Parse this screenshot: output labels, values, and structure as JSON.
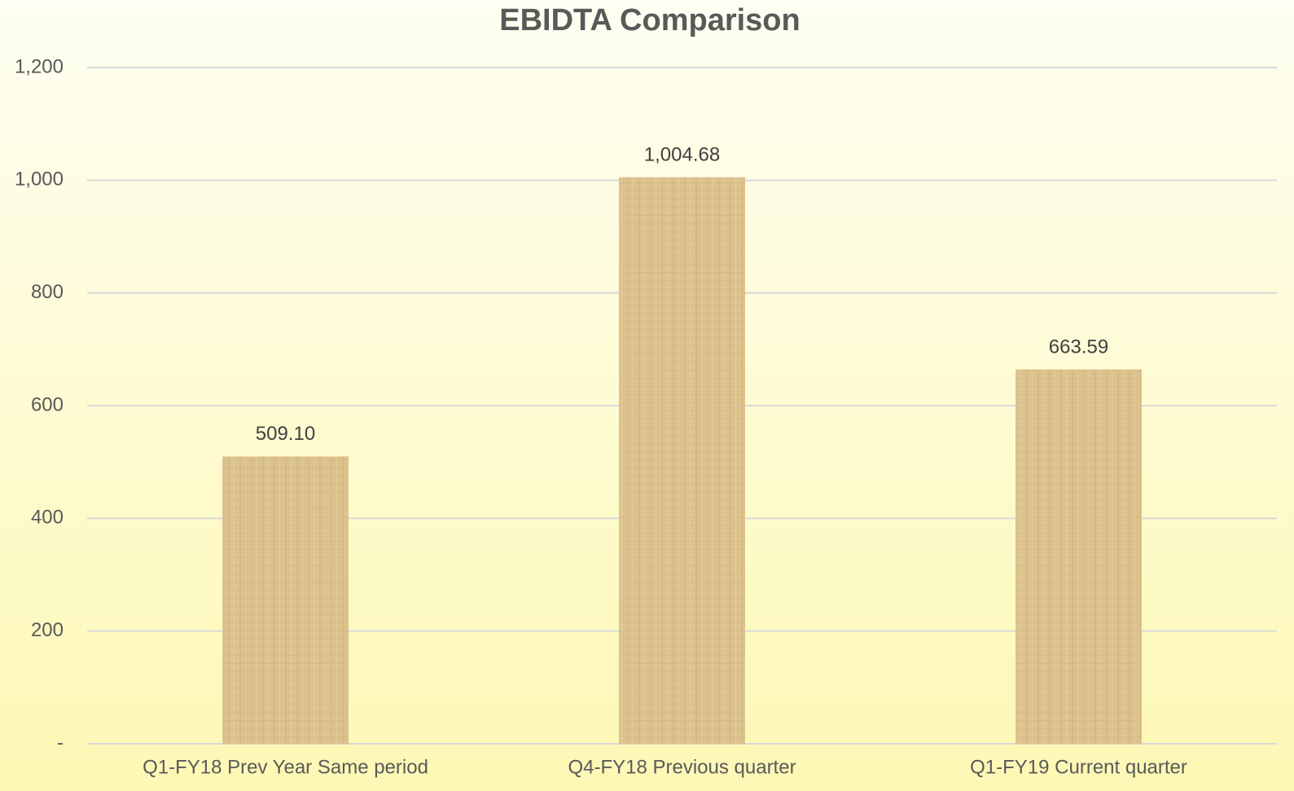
{
  "chart_data": {
    "type": "bar",
    "title": "EBIDTA Comparison",
    "categories": [
      "Q1-FY18 Prev Year Same period",
      "Q4-FY18 Previous quarter",
      "Q1-FY19 Current quarter"
    ],
    "values": [
      509.1,
      1004.68,
      663.59
    ],
    "value_labels": [
      "509.10",
      "1,004.68",
      "663.59"
    ],
    "color": "#dbc38f",
    "ylim": [
      0,
      1200
    ],
    "yticks": [
      {
        "value": 0,
        "label": "-"
      },
      200,
      400,
      600,
      800,
      {
        "value": 1000,
        "label": "1,000"
      },
      {
        "value": 1200,
        "label": "1,200"
      }
    ],
    "grid": true
  }
}
